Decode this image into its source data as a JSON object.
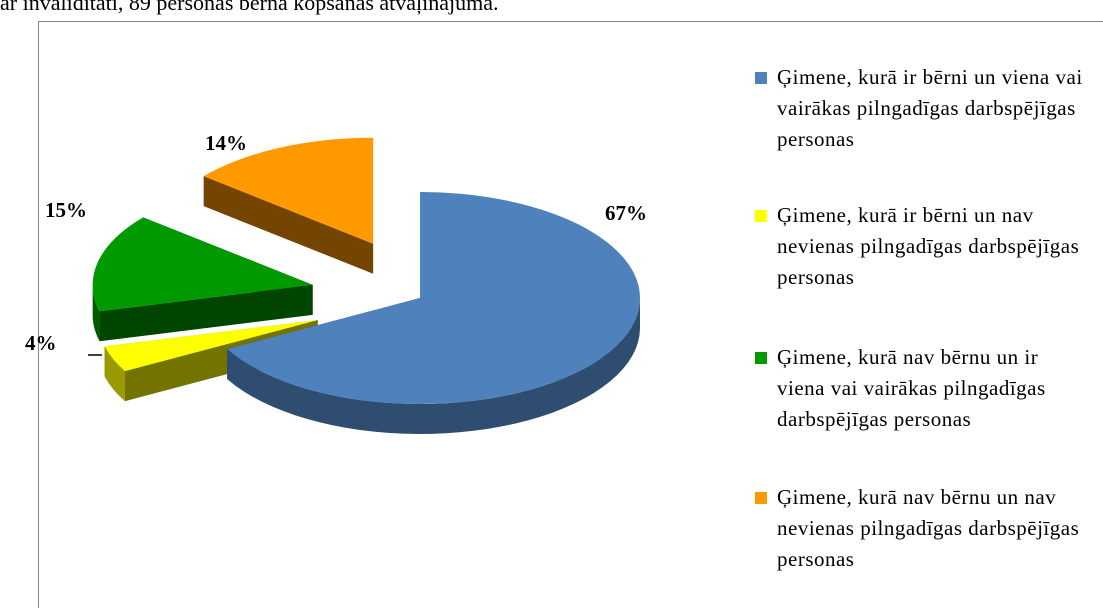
{
  "caption": "ar invaliditāti, 89 personas bērna kopšanas atvaļinājumā.",
  "chart_data": {
    "type": "pie",
    "categories": [
      "Ģimene, kurā ir bērni un viena vai vairākas pilngadīgas darbspējīgas personas",
      "Ģimene, kurā ir bērni un nav nevienas pilngadīgas darbspējīgas personas",
      "Ģimene, kurā nav bērnu un ir viena vai vairākas pilngadīgas darbspējīgas personas",
      "Ģimene, kurā nav bērnu un nav nevienas pilngadīgas darbspējīgas personas"
    ],
    "values": [
      67,
      4,
      15,
      14
    ],
    "value_labels": [
      "67%",
      "4%",
      "15%",
      "14%"
    ],
    "colors": [
      "#4f81bd",
      "#ffff00",
      "#009900",
      "#ff9900"
    ]
  }
}
